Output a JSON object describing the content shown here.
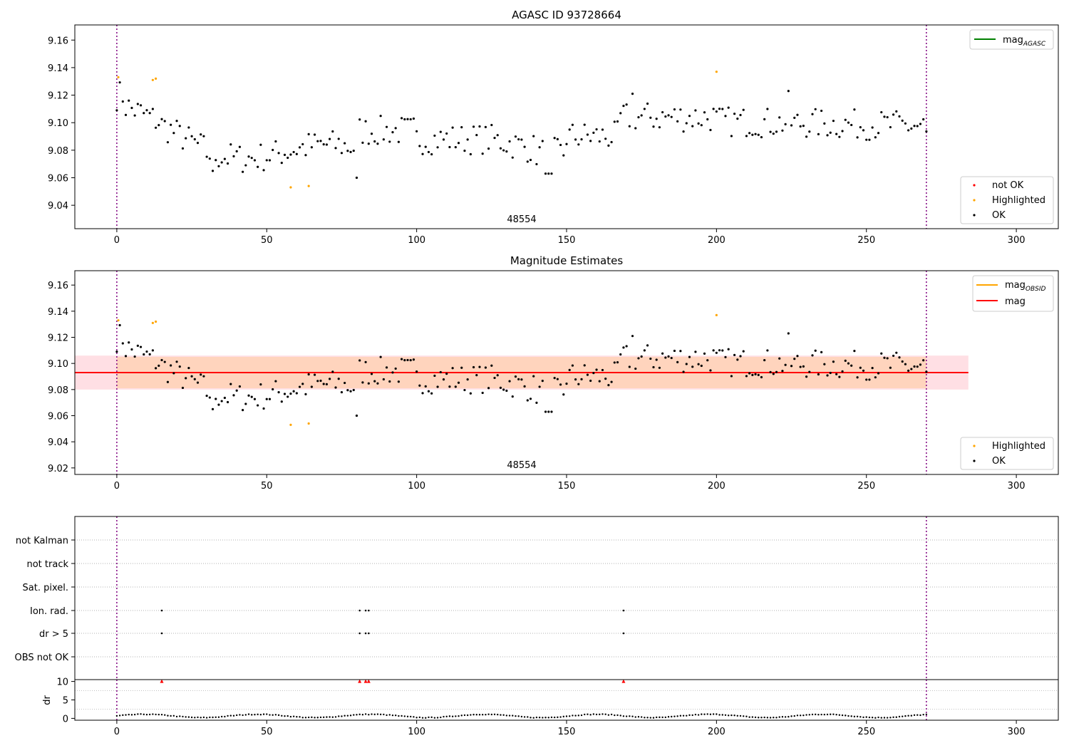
{
  "chart_data": [
    {
      "type": "scatter",
      "title": "AGASC ID 93728664",
      "annotation": "48554",
      "xlim": [
        -14,
        314
      ],
      "ylim": [
        9.023,
        9.171
      ],
      "xticks": [
        0,
        50,
        100,
        150,
        200,
        250,
        300
      ],
      "yticks": [
        9.04,
        9.06,
        9.08,
        9.1,
        9.12,
        9.14,
        9.16
      ],
      "vlines": [
        0,
        270
      ],
      "legend_upper": {
        "position": "top-right",
        "entries": [
          {
            "label": "mag",
            "sub": "AGASC",
            "color": "#008000"
          }
        ]
      },
      "legend_lower": {
        "position": "bottom-right",
        "entries": [
          {
            "label": "not OK",
            "color": "#ff0000"
          },
          {
            "label": "Highlighted",
            "color": "#ffa500"
          },
          {
            "label": "OK",
            "color": "#000000"
          }
        ]
      },
      "highlighted_points": [
        [
          0.5,
          9.133
        ],
        [
          12,
          9.131
        ],
        [
          13,
          9.132
        ],
        [
          58,
          9.053
        ],
        [
          64,
          9.054
        ],
        [
          200,
          9.137
        ]
      ]
    },
    {
      "type": "scatter",
      "title": "Magnitude Estimates",
      "annotation": "48554",
      "xlim": [
        -14,
        314
      ],
      "ylim": [
        9.015,
        9.171
      ],
      "xticks": [
        0,
        50,
        100,
        150,
        200,
        250,
        300
      ],
      "yticks": [
        9.02,
        9.04,
        9.06,
        9.08,
        9.1,
        9.12,
        9.14,
        9.16
      ],
      "vlines": [
        0,
        270
      ],
      "mag_line": 9.093,
      "band_outer": [
        9.08,
        9.106
      ],
      "band_inner": [
        9.081,
        9.105
      ],
      "band_x": [
        -14,
        284
      ],
      "legend_upper": {
        "position": "top-right",
        "entries": [
          {
            "label": "mag",
            "sub": "OBSID",
            "color": "#ffa500"
          },
          {
            "label": "mag",
            "sub": "",
            "color": "#ff0000"
          }
        ]
      },
      "legend_lower": {
        "position": "bottom-right",
        "entries": [
          {
            "label": "Highlighted",
            "color": "#ffa500"
          },
          {
            "label": "OK",
            "color": "#000000"
          }
        ]
      },
      "highlighted_points": [
        [
          0.5,
          9.133
        ],
        [
          12,
          9.131
        ],
        [
          13,
          9.132
        ],
        [
          58,
          9.053
        ],
        [
          64,
          9.054
        ],
        [
          200,
          9.137
        ]
      ]
    },
    {
      "type": "scatter",
      "xlim": [
        -14,
        314
      ],
      "xticks": [
        0,
        50,
        100,
        150,
        200,
        250,
        300
      ],
      "vlines": [
        0,
        270
      ],
      "flag_rows": [
        "not Kalman",
        "not track",
        "Sat. pixel.",
        "Ion. rad.",
        "dr > 5",
        "OBS not OK"
      ],
      "flag_points": {
        "Ion. rad.": [
          15,
          81,
          83,
          84,
          169
        ],
        "dr > 5": [
          15,
          81,
          83,
          84,
          169
        ]
      }
    },
    {
      "type": "scatter",
      "ylabel": "dr",
      "xlim": [
        -14,
        314
      ],
      "ylim": [
        -0.5,
        10.5
      ],
      "xticks": [
        0,
        50,
        100,
        150,
        200,
        250,
        300
      ],
      "yticks": [
        0,
        5,
        10
      ],
      "vlines": [
        0,
        270
      ],
      "outliers_clipped": [
        15,
        81,
        83,
        84,
        169
      ],
      "clip_value": 10
    }
  ]
}
